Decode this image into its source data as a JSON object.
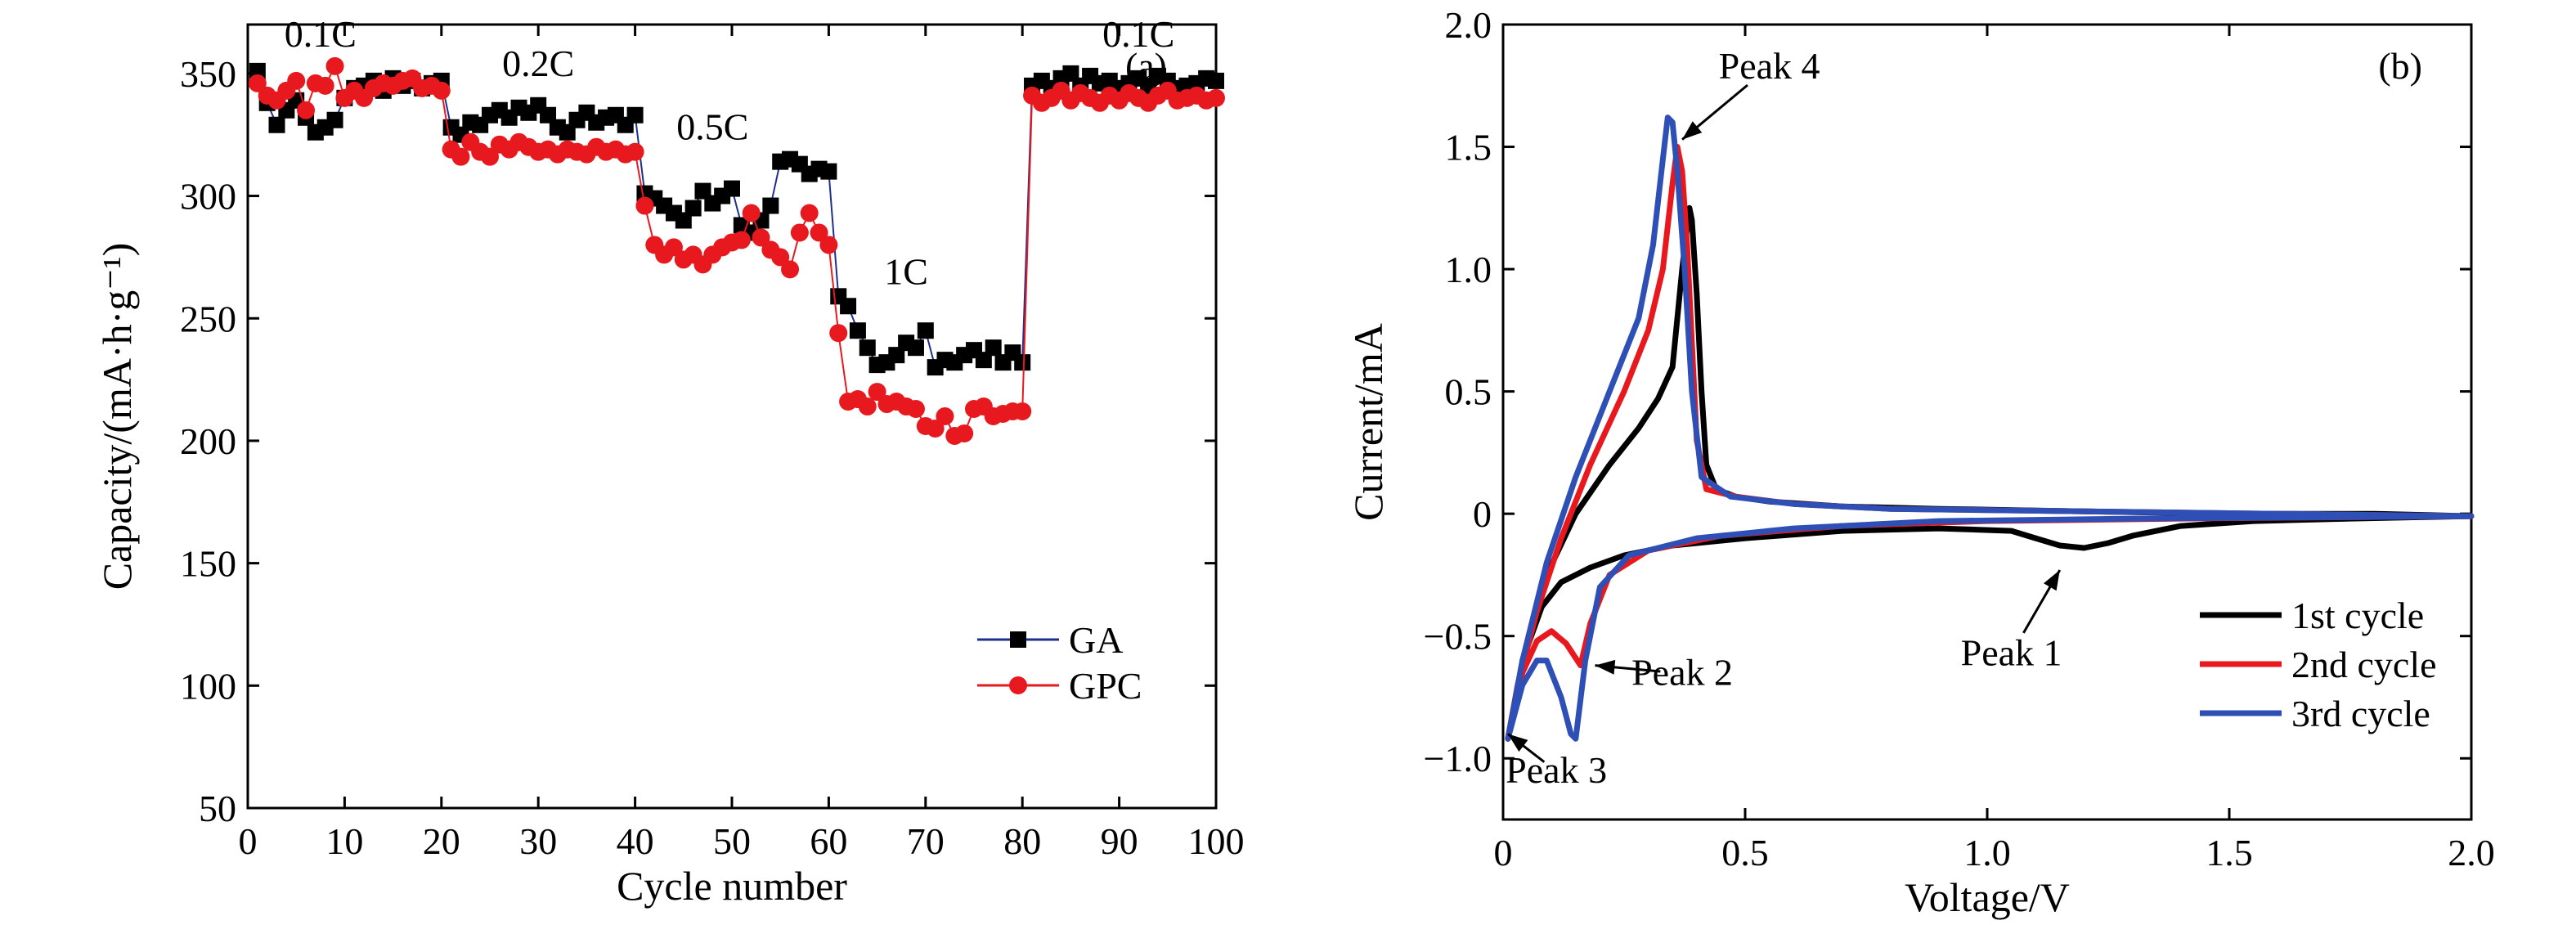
{
  "chart_data": [
    {
      "type": "scatter",
      "panel": "(a)",
      "xlabel": "Cycle number",
      "ylabel": "Capacity/(mA·h·g⁻¹)",
      "xlim": [
        0,
        100
      ],
      "ylim": [
        50,
        370
      ],
      "xticks": [
        0,
        10,
        20,
        30,
        40,
        50,
        60,
        70,
        80,
        90,
        100
      ],
      "yticks": [
        50,
        100,
        150,
        200,
        250,
        300,
        350
      ],
      "grid": false,
      "legend_position": "bottom-right",
      "annotations": [
        {
          "text": "0.1C",
          "x": 7.5,
          "y": 361
        },
        {
          "text": "0.2C",
          "x": 30,
          "y": 349
        },
        {
          "text": "0.5C",
          "x": 48,
          "y": 323
        },
        {
          "text": "1C",
          "x": 68,
          "y": 264
        },
        {
          "text": "0.1C",
          "x": 92,
          "y": 361
        }
      ],
      "series": [
        {
          "name": "GA",
          "marker": "square",
          "color": "#000000",
          "line_color": "#1f2f8f",
          "x": [
            1,
            2,
            3,
            4,
            5,
            6,
            7,
            8,
            9,
            10,
            11,
            12,
            13,
            14,
            15,
            16,
            17,
            18,
            19,
            20,
            21,
            22,
            23,
            24,
            25,
            26,
            27,
            28,
            29,
            30,
            31,
            32,
            33,
            34,
            35,
            36,
            37,
            38,
            39,
            40,
            41,
            42,
            43,
            44,
            45,
            46,
            47,
            48,
            49,
            50,
            51,
            52,
            53,
            54,
            55,
            56,
            57,
            58,
            59,
            60,
            61,
            62,
            63,
            64,
            65,
            66,
            67,
            68,
            69,
            70,
            71,
            72,
            73,
            74,
            75,
            76,
            77,
            78,
            79,
            80,
            81,
            82,
            83,
            84,
            85,
            86,
            87,
            88,
            89,
            90,
            91,
            92,
            93,
            94,
            95,
            96,
            97,
            98,
            99,
            100
          ],
          "y": [
            351,
            338,
            329,
            335,
            339,
            332,
            326,
            328,
            331,
            340,
            344,
            345,
            347,
            343,
            348,
            345,
            347,
            344,
            346,
            347,
            328,
            325,
            330,
            329,
            333,
            335,
            332,
            336,
            334,
            337,
            333,
            328,
            326,
            331,
            334,
            330,
            332,
            333,
            329,
            333,
            301,
            299,
            296,
            293,
            290,
            295,
            302,
            297,
            300,
            303,
            288,
            285,
            290,
            296,
            314,
            315,
            313,
            309,
            311,
            310,
            259,
            255,
            245,
            238,
            231,
            232,
            235,
            240,
            238,
            245,
            230,
            233,
            232,
            235,
            237,
            233,
            238,
            232,
            236,
            232,
            345,
            347,
            344,
            348,
            350,
            345,
            349,
            346,
            347,
            344,
            346,
            348,
            345,
            349,
            347,
            344,
            345,
            346,
            348,
            347
          ]
        },
        {
          "name": "GPC",
          "marker": "circle",
          "color": "#e8191e",
          "line_color": "#e8191e",
          "x": [
            1,
            2,
            3,
            4,
            5,
            6,
            7,
            8,
            9,
            10,
            11,
            12,
            13,
            14,
            15,
            16,
            17,
            18,
            19,
            20,
            21,
            22,
            23,
            24,
            25,
            26,
            27,
            28,
            29,
            30,
            31,
            32,
            33,
            34,
            35,
            36,
            37,
            38,
            39,
            40,
            41,
            42,
            43,
            44,
            45,
            46,
            47,
            48,
            49,
            50,
            51,
            52,
            53,
            54,
            55,
            56,
            57,
            58,
            59,
            60,
            61,
            62,
            63,
            64,
            65,
            66,
            67,
            68,
            69,
            70,
            71,
            72,
            73,
            74,
            75,
            76,
            77,
            78,
            79,
            80,
            81,
            82,
            83,
            84,
            85,
            86,
            87,
            88,
            89,
            90,
            91,
            92,
            93,
            94,
            95,
            96,
            97,
            98,
            99,
            100
          ],
          "y": [
            346,
            341,
            339,
            343,
            347,
            335,
            346,
            345,
            353,
            340,
            343,
            340,
            344,
            346,
            345,
            347,
            348,
            344,
            345,
            343,
            319,
            316,
            322,
            318,
            316,
            321,
            319,
            322,
            320,
            318,
            319,
            317,
            319,
            318,
            317,
            320,
            318,
            319,
            317,
            318,
            296,
            280,
            276,
            279,
            274,
            276,
            272,
            276,
            279,
            281,
            282,
            293,
            283,
            278,
            275,
            270,
            285,
            293,
            285,
            280,
            244,
            216,
            217,
            214,
            220,
            215,
            216,
            214,
            213,
            206,
            205,
            210,
            202,
            203,
            213,
            214,
            210,
            211,
            212,
            212,
            341,
            338,
            340,
            343,
            339,
            342,
            340,
            338,
            341,
            339,
            342,
            340,
            338,
            341,
            343,
            339,
            340,
            341,
            339,
            340
          ]
        }
      ]
    },
    {
      "type": "line",
      "panel": "(b)",
      "xlabel": "Voltage/V",
      "ylabel": "Current/mA",
      "xlim": [
        0,
        2.0
      ],
      "ylim": [
        -1.25,
        2.0
      ],
      "xticks": [
        0,
        0.5,
        1.0,
        1.5,
        2.0
      ],
      "xtick_labels": [
        "0",
        "0.5",
        "1.0",
        "1.5",
        "2.0"
      ],
      "yticks": [
        -1.0,
        -0.5,
        0,
        0.5,
        1.0,
        1.5,
        2.0
      ],
      "ytick_labels": [
        "−1.0",
        "−0.5",
        "0",
        "0.5",
        "1.0",
        "1.5",
        "2.0"
      ],
      "grid": false,
      "legend_position": "bottom-right",
      "annotations": [
        {
          "text": "Peak 4",
          "x": 0.55,
          "y": 1.78,
          "arrow_to": [
            0.37,
            1.53
          ]
        },
        {
          "text": "Peak 2",
          "x": 0.37,
          "y": -0.7,
          "arrow_to": [
            0.19,
            -0.62
          ]
        },
        {
          "text": "Peak 3",
          "x": 0.11,
          "y": -1.1,
          "arrow_to": [
            0.01,
            -0.9
          ]
        },
        {
          "text": "Peak 1",
          "x": 1.05,
          "y": -0.62,
          "arrow_to": [
            1.15,
            -0.23
          ]
        }
      ],
      "series": [
        {
          "name": "1st cycle",
          "color": "#000000",
          "x": [
            0.01,
            0.04,
            0.08,
            0.12,
            0.18,
            0.25,
            0.35,
            0.5,
            0.7,
            0.9,
            1.05,
            1.1,
            1.15,
            1.2,
            1.25,
            1.3,
            1.4,
            1.55,
            1.75,
            2.0,
            1.8,
            1.5,
            1.2,
            0.9,
            0.7,
            0.55,
            0.48,
            0.44,
            0.42,
            0.41,
            0.4,
            0.39,
            0.385,
            0.37,
            0.35,
            0.32,
            0.28,
            0.22,
            0.15,
            0.09,
            0.04,
            0.01
          ],
          "y": [
            -0.92,
            -0.6,
            -0.38,
            -0.28,
            -0.22,
            -0.17,
            -0.13,
            -0.1,
            -0.07,
            -0.06,
            -0.07,
            -0.1,
            -0.13,
            -0.14,
            -0.12,
            -0.09,
            -0.05,
            -0.03,
            -0.02,
            -0.01,
            0.0,
            0.0,
            0.01,
            0.02,
            0.03,
            0.05,
            0.07,
            0.1,
            0.2,
            0.5,
            0.9,
            1.2,
            1.25,
            1.0,
            0.6,
            0.47,
            0.35,
            0.2,
            0.0,
            -0.25,
            -0.6,
            -0.92
          ]
        },
        {
          "name": "2nd cycle",
          "color": "#e8191e",
          "x": [
            0.01,
            0.04,
            0.07,
            0.1,
            0.13,
            0.16,
            0.18,
            0.22,
            0.3,
            0.45,
            0.7,
            1.0,
            1.4,
            2.0,
            1.6,
            1.2,
            0.8,
            0.6,
            0.48,
            0.42,
            0.4,
            0.39,
            0.38,
            0.37,
            0.36,
            0.35,
            0.33,
            0.3,
            0.25,
            0.18,
            0.12,
            0.07,
            0.03,
            0.01
          ],
          "y": [
            -0.92,
            -0.65,
            -0.52,
            -0.48,
            -0.53,
            -0.62,
            -0.45,
            -0.25,
            -0.15,
            -0.09,
            -0.05,
            -0.03,
            -0.02,
            -0.01,
            0.0,
            0.01,
            0.02,
            0.04,
            0.07,
            0.1,
            0.3,
            0.7,
            1.1,
            1.4,
            1.5,
            1.35,
            1.0,
            0.75,
            0.5,
            0.2,
            -0.1,
            -0.4,
            -0.7,
            -0.92
          ]
        },
        {
          "name": "3rd cycle",
          "color": "#2e4fb5",
          "x": [
            0.01,
            0.04,
            0.07,
            0.09,
            0.12,
            0.14,
            0.15,
            0.17,
            0.2,
            0.26,
            0.4,
            0.6,
            0.9,
            1.3,
            2.0,
            1.6,
            1.2,
            0.8,
            0.6,
            0.47,
            0.41,
            0.39,
            0.375,
            0.36,
            0.35,
            0.34,
            0.33,
            0.31,
            0.28,
            0.22,
            0.15,
            0.09,
            0.04,
            0.01
          ],
          "y": [
            -0.92,
            -0.7,
            -0.6,
            -0.6,
            -0.75,
            -0.9,
            -0.92,
            -0.6,
            -0.3,
            -0.17,
            -0.1,
            -0.06,
            -0.03,
            -0.02,
            -0.01,
            0.0,
            0.01,
            0.02,
            0.04,
            0.07,
            0.15,
            0.5,
            1.0,
            1.4,
            1.6,
            1.62,
            1.45,
            1.1,
            0.8,
            0.5,
            0.15,
            -0.2,
            -0.6,
            -0.92
          ]
        }
      ]
    }
  ]
}
